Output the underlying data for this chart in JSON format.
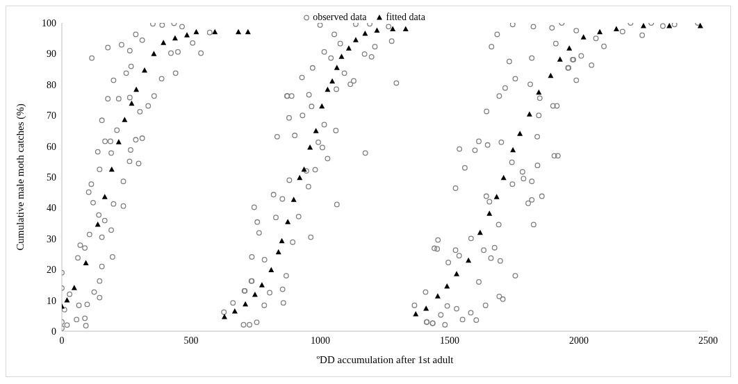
{
  "chart_data": {
    "type": "scatter",
    "xlabel": "ºDD accumulation after 1st adult",
    "ylabel": "Cumulative  male moth catches (%)",
    "xlim": [
      0,
      2500
    ],
    "xticks": [
      0,
      500,
      1000,
      1500,
      2000,
      2500
    ],
    "ylim": [
      0,
      100
    ],
    "yticks": [
      0,
      10,
      20,
      30,
      40,
      50,
      60,
      70,
      80,
      90,
      100
    ],
    "grid": false,
    "legend": "top",
    "series": [
      {
        "name": "observed data",
        "color": "#808080",
        "marker": "circle",
        "x": [
          0,
          0,
          0,
          0,
          10,
          30,
          20,
          116,
          178,
          231,
          263,
          286,
          311,
          200,
          249,
          268,
          178,
          220,
          263,
          302,
          334,
          357,
          155,
          213,
          167,
          188,
          286,
          311,
          139,
          191,
          266,
          262,
          297,
          146,
          238,
          114,
          104,
          200,
          238,
          121,
          143,
          166,
          191,
          155,
          107,
          71,
          89,
          62,
          196,
          155,
          146,
          125,
          146,
          66,
          98,
          89,
          93,
          57,
          352,
          388,
          434,
          465,
          506,
          538,
          572,
          440,
          386,
          449,
          422,
          627,
          662,
          703,
          726,
          754,
          708,
          735,
          735,
          744,
          756,
          763,
          784,
          783,
          804,
          819,
          828,
          853,
          854,
          857,
          868,
          880,
          893,
          916,
          901,
          879,
          871,
          889,
          929,
          833,
          706,
          733,
          872,
          931,
          956,
          946,
          954,
          963,
          966,
          970,
          980,
          992,
          1008,
          1015,
          1015,
          1028,
          1041,
          1060,
          1064,
          1062,
          1077,
          1093,
          1116,
          1129,
          1171,
          1198,
          1211,
          1174,
          1276,
          1294,
          999,
          1054,
          1137,
          1191,
          1264,
          1364,
          1407,
          1411,
          1434,
          1466,
          1482,
          1495,
          1452,
          1455,
          1523,
          1523,
          1538,
          1412,
          1435,
          1491,
          1527,
          1550,
          1582,
          1603,
          1613,
          1639,
          1692,
          1706,
          1754,
          1559,
          1598,
          1613,
          1643,
          1647,
          1642,
          1654,
          1690,
          1674,
          1632,
          1660,
          1696,
          1583,
          1537,
          1441,
          1692,
          1715,
          1700,
          1662,
          1684,
          1731,
          1754,
          1741,
          1743,
          1782,
          1786,
          1818,
          1804,
          1818,
          1825,
          1857,
          1839,
          1840,
          1812,
          1818,
          1845,
          1849,
          1900,
          1905,
          1911,
          1958,
          1990,
          1976,
          1744,
          1824,
          1896,
          1934,
          1915,
          1919,
          2049,
          1960,
          1979,
          2009,
          2097,
          2066,
          2169,
          2245,
          2325,
          1990,
          2200,
          2280,
          2370,
          2460
        ],
        "values": [
          19,
          14,
          3,
          1,
          7,
          12,
          2,
          88.6,
          92,
          92.9,
          91,
          96.3,
          94.4,
          81.4,
          83.7,
          85.9,
          75.4,
          75.4,
          75.8,
          71.2,
          73.1,
          76.3,
          68.4,
          65.2,
          61.6,
          61.6,
          62.1,
          62.6,
          58.2,
          57.8,
          58.8,
          55.1,
          54.4,
          52.5,
          48.6,
          47.7,
          45.1,
          41.3,
          40.6,
          41.7,
          37.7,
          35.9,
          32.8,
          30.5,
          31.4,
          27.9,
          27,
          23.8,
          24.1,
          21,
          16.3,
          12.7,
          10.9,
          8.4,
          8.7,
          4.2,
          1.8,
          3.8,
          99.7,
          99.3,
          99.9,
          98.8,
          93.5,
          90.2,
          96.9,
          83.7,
          81.9,
          90.6,
          90.2,
          6.2,
          9.2,
          2.1,
          2.1,
          2.9,
          13.1,
          24.1,
          16.3,
          40.2,
          35.4,
          31.9,
          23.2,
          8.4,
          12.5,
          44.3,
          36.9,
          42.9,
          13.6,
          9.2,
          18,
          49,
          28.9,
          37.2,
          63.5,
          69.2,
          76.3,
          76.3,
          82.3,
          63.1,
          13.1,
          16.3,
          76.3,
          70,
          76.7,
          52,
          46.9,
          30.5,
          72.9,
          85.4,
          52.4,
          61.3,
          59.6,
          67,
          90.6,
          56,
          88.6,
          65.1,
          41.1,
          78.5,
          93.3,
          83.7,
          80.1,
          81.2,
          89.9,
          89,
          92.3,
          57.8,
          94.1,
          80.5,
          99.3,
          96.3,
          99.6,
          99.7,
          98.8,
          8.4,
          12.7,
          3,
          2.6,
          5.3,
          2.1,
          22.3,
          26.7,
          29.6,
          26.3,
          46.4,
          59.1,
          3,
          2.6,
          8.2,
          7.3,
          3.8,
          6,
          3.6,
          16,
          8.4,
          11.3,
          10.4,
          18,
          53,
          58.7,
          61.6,
          71.3,
          60.4,
          43.8,
          42,
          34.6,
          27.1,
          26.3,
          23.7,
          22.8,
          30.1,
          24.5,
          26.9,
          76.3,
          78.9,
          61.3,
          92.3,
          96.3,
          87.5,
          81.9,
          54.8,
          47.7,
          51.7,
          49.5,
          48.6,
          41.5,
          42.6,
          34.6,
          43.8,
          63.1,
          53.8,
          80.1,
          88.6,
          70,
          75.6,
          73.1,
          56.9,
          93.3,
          85.4,
          81.4,
          88.1,
          99.5,
          98.8,
          98.4,
          100,
          73.1,
          56.9,
          86.3,
          85.4,
          88.1,
          89.3,
          92.4,
          95,
          97.2,
          96,
          99,
          97.5,
          100,
          100,
          99.5,
          100
        ]
      },
      {
        "name": "fitted data",
        "color": "#000000",
        "marker": "triangle",
        "x": [
          0,
          20,
          48,
          93,
          139,
          166,
          193,
          220,
          243,
          270,
          288,
          320,
          356,
          393,
          438,
          484,
          520,
          592,
          683,
          720,
          629,
          669,
          710,
          747,
          774,
          810,
          838,
          851,
          874,
          897,
          920,
          937,
          960,
          983,
          1006,
          1028,
          1046,
          1064,
          1082,
          1110,
          1137,
          1173,
          1219,
          1280,
          1330,
          1369,
          1409,
          1454,
          1490,
          1527,
          1573,
          1618,
          1654,
          1682,
          1709,
          1745,
          1772,
          1809,
          1845,
          1891,
          1927,
          1963,
          2018,
          2081,
          2145,
          2250,
          2350,
          2470
        ],
        "values": [
          8,
          10,
          14,
          22.1,
          34.6,
          43.5,
          52.4,
          61.3,
          68.5,
          73.8,
          78.3,
          84.6,
          89.9,
          93.5,
          95,
          96,
          97,
          97,
          97,
          97,
          4.6,
          6.4,
          8.7,
          11.8,
          14.9,
          19.8,
          25.6,
          29.2,
          35.4,
          42.6,
          49.7,
          52.4,
          59.6,
          64.9,
          72.9,
          78.3,
          81,
          85.4,
          89,
          91.7,
          94.4,
          96.5,
          97.5,
          98,
          98,
          5.5,
          7.3,
          11.3,
          14.5,
          18.5,
          22.9,
          31.9,
          38.1,
          43.5,
          49.7,
          58.7,
          64,
          70.3,
          77.4,
          82.8,
          88.1,
          91.7,
          95.3,
          97,
          98,
          99,
          99,
          99
        ]
      }
    ]
  }
}
